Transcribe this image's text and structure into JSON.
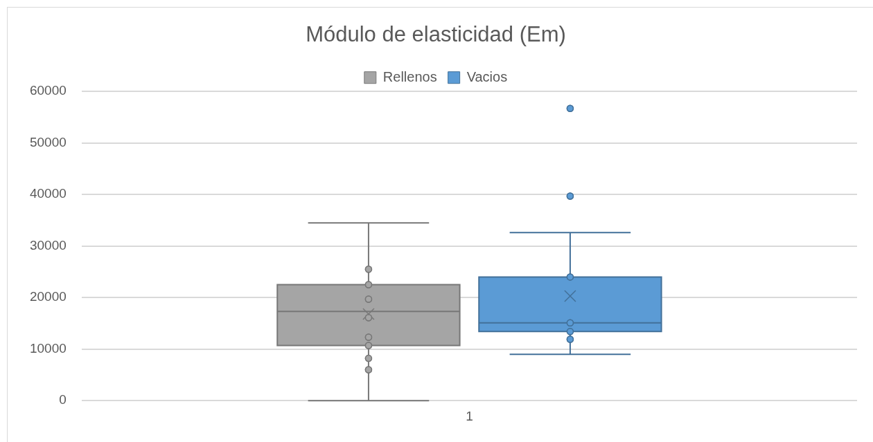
{
  "chart_data": {
    "type": "box",
    "title": "Módulo de elasticidad (Em)",
    "categories": [
      "1"
    ],
    "series": [
      {
        "name": "Rellenos",
        "color": "#a5a5a5",
        "boxes": [
          {
            "low": 0,
            "q1": 10700,
            "median": 17300,
            "q3": 22500,
            "high": 34500,
            "mean": 16800
          }
        ]
      },
      {
        "name": "Vacios",
        "color": "#5b9bd5",
        "boxes": [
          {
            "low": 9000,
            "q1": 13400,
            "median": 15100,
            "q3": 24000,
            "high": 32600,
            "mean": 20300,
            "outliers": [
              39700,
              56700
            ]
          }
        ]
      },
      {
        "type": "scatter",
        "color": "#a5a5a5",
        "x": [
          "1",
          "1",
          "1",
          "1",
          "1",
          "1",
          "1",
          "1"
        ],
        "values": [
          25500,
          22500,
          19700,
          16100,
          12300,
          10700,
          8200,
          6000
        ]
      },
      {
        "type": "scatter",
        "color": "#5b9bd5",
        "x": [
          "1",
          "1",
          "1",
          "1"
        ],
        "values": [
          24000,
          15100,
          13400,
          11900
        ]
      }
    ],
    "ylim": [
      0,
      60000
    ],
    "yticks": [
      0,
      10000,
      20000,
      30000,
      40000,
      50000,
      60000
    ],
    "grid": "y",
    "legend": "top",
    "marker": "circle"
  }
}
